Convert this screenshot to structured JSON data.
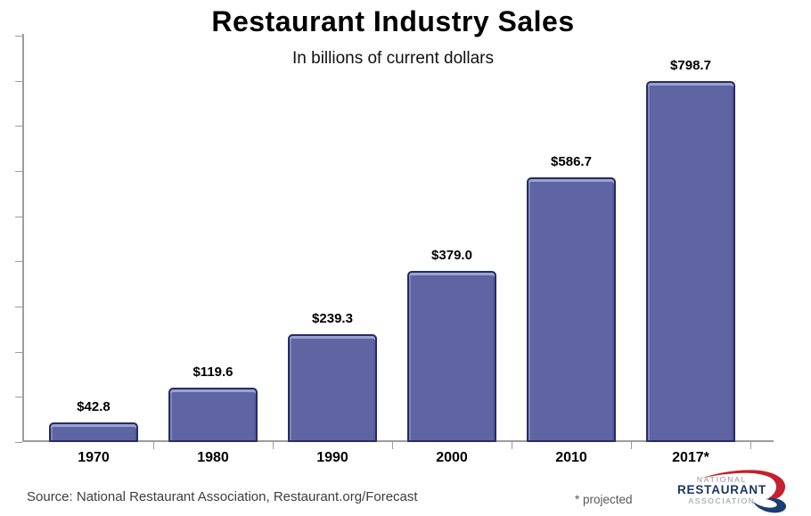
{
  "title": "Restaurant Industry Sales",
  "subtitle": "In billions of current dollars",
  "chart_data": {
    "type": "bar",
    "categories": [
      "1970",
      "1980",
      "1990",
      "2000",
      "2010",
      "2017*"
    ],
    "values": [
      42.8,
      119.6,
      239.3,
      379.0,
      586.7,
      798.7
    ],
    "value_labels": [
      "$42.8",
      "$119.6",
      "$239.3",
      "$379.0",
      "$586.7",
      "$798.7"
    ],
    "title": "Restaurant Industry Sales",
    "subtitle": "In billions of current dollars",
    "xlabel": "",
    "ylabel": "",
    "ylim": [
      0,
      900
    ],
    "y_tick_interval": 100,
    "y_tick_labels_shown": false,
    "grid": false,
    "legend": "none",
    "bar_color": "#5f65a3",
    "bar_border_color": "#262c61",
    "bar_highlight_color": "#9aa2d0"
  },
  "footer": {
    "source": "Source: National Restaurant Association, Restaurant.org/Forecast",
    "projected_note": "* projected"
  },
  "logo": {
    "line1": "NATIONAL",
    "line2": "RESTAURANT",
    "line3": "ASSOCIATION",
    "navy": "#19355f",
    "gray": "#8b93a3",
    "red": "#c5202e"
  }
}
